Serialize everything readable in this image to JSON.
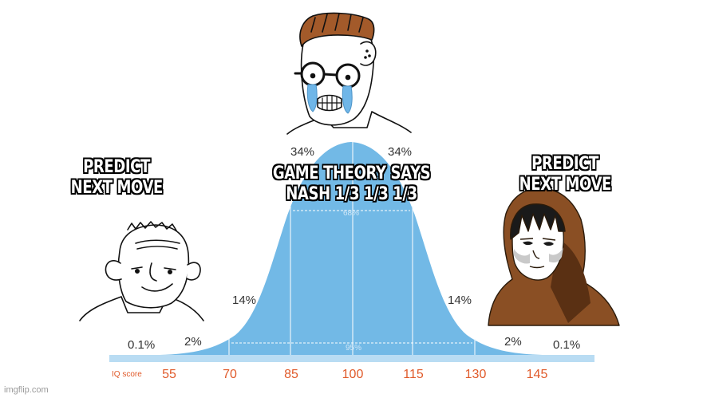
{
  "captions": {
    "left": [
      "PREDICT",
      "NEXT MOVE"
    ],
    "middle": [
      "GAME THEORY SAYS",
      "NASH 1/3 1/3 1/3"
    ],
    "right": [
      "PREDICT",
      "NEXT MOVE"
    ]
  },
  "curve": {
    "color": "#72b9e6",
    "axis_color": "#b9dcf3",
    "percent_labels": {
      "left_tail": "0.1%",
      "left_2": "2%",
      "left_14": "14%",
      "left_34": "34%",
      "right_34": "34%",
      "right_14": "14%",
      "right_2": "2%",
      "right_tail": "0.1%",
      "middle_68": "68%",
      "middle_95": "95%"
    },
    "axis_label": "IQ score",
    "ticks": [
      "55",
      "70",
      "85",
      "100",
      "115",
      "130",
      "145"
    ]
  },
  "characters": {
    "left": "grinning-bald-wojak",
    "middle": "crying-nerd-wojak",
    "right": "hooded-figure"
  },
  "watermark": "imgflip.com"
}
